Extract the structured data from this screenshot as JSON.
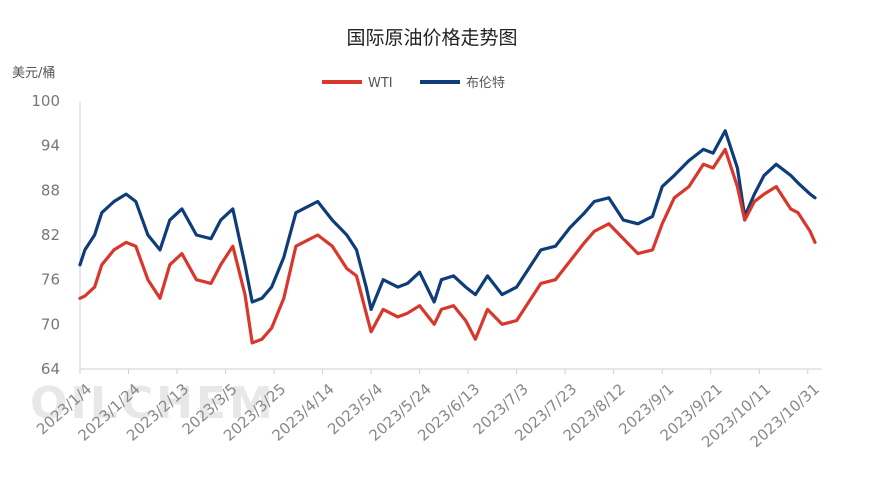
{
  "chart_data": {
    "type": "line",
    "title": "国际原油价格走势图",
    "ylabel": "美元/桶",
    "ylim": [
      64,
      100
    ],
    "yticks": [
      64,
      70,
      76,
      82,
      88,
      94,
      100
    ],
    "xlim": [
      "2023-01-04",
      "2023-11-03"
    ],
    "xticks": [
      "2023/1/4",
      "2023/1/24",
      "2023/2/13",
      "2023/3/5",
      "2023/3/25",
      "2023/4/14",
      "2023/5/4",
      "2023/5/24",
      "2023/6/13",
      "2023/7/3",
      "2023/7/23",
      "2023/8/12",
      "2023/9/1",
      "2023/9/21",
      "2023/10/11",
      "2023/10/31"
    ],
    "grid": false,
    "legend_position": "top-center",
    "watermark": "OILCHEM",
    "series": [
      {
        "name": "WTI",
        "color": "#d9372b",
        "x": [
          "2023-01-04",
          "2023-01-06",
          "2023-01-10",
          "2023-01-13",
          "2023-01-18",
          "2023-01-23",
          "2023-01-27",
          "2023-02-01",
          "2023-02-06",
          "2023-02-10",
          "2023-02-15",
          "2023-02-21",
          "2023-02-27",
          "2023-03-03",
          "2023-03-08",
          "2023-03-13",
          "2023-03-16",
          "2023-03-20",
          "2023-03-24",
          "2023-03-29",
          "2023-04-03",
          "2023-04-06",
          "2023-04-12",
          "2023-04-18",
          "2023-04-24",
          "2023-04-28",
          "2023-05-02",
          "2023-05-04",
          "2023-05-09",
          "2023-05-15",
          "2023-05-19",
          "2023-05-24",
          "2023-05-30",
          "2023-06-02",
          "2023-06-07",
          "2023-06-12",
          "2023-06-16",
          "2023-06-21",
          "2023-06-27",
          "2023-07-03",
          "2023-07-07",
          "2023-07-13",
          "2023-07-19",
          "2023-07-25",
          "2023-07-31",
          "2023-08-04",
          "2023-08-10",
          "2023-08-16",
          "2023-08-22",
          "2023-08-28",
          "2023-09-01",
          "2023-09-06",
          "2023-09-12",
          "2023-09-18",
          "2023-09-22",
          "2023-09-27",
          "2023-10-02",
          "2023-10-05",
          "2023-10-09",
          "2023-10-13",
          "2023-10-18",
          "2023-10-24",
          "2023-10-27",
          "2023-11-01",
          "2023-11-03"
        ],
        "values": [
          73.5,
          73.8,
          75,
          78,
          80,
          81,
          80.5,
          76,
          73.5,
          78,
          79.5,
          76,
          75.5,
          78,
          80.5,
          74,
          67.5,
          68,
          69.5,
          73.5,
          80.5,
          81,
          82,
          80.5,
          77.5,
          76.5,
          71.5,
          69,
          72,
          71,
          71.5,
          72.5,
          70,
          72,
          72.5,
          70.5,
          68,
          72,
          70,
          70.5,
          72.5,
          75.5,
          76,
          78.5,
          81,
          82.5,
          83.5,
          81.5,
          79.5,
          80,
          83.5,
          87,
          88.5,
          91.5,
          91,
          93.5,
          88.5,
          84,
          86.5,
          87.5,
          88.5,
          85.5,
          85,
          82.5,
          81
        ]
      },
      {
        "name": "布伦特",
        "color": "#0e3d7a",
        "x": [
          "2023-01-04",
          "2023-01-06",
          "2023-01-10",
          "2023-01-13",
          "2023-01-18",
          "2023-01-23",
          "2023-01-27",
          "2023-02-01",
          "2023-02-06",
          "2023-02-10",
          "2023-02-15",
          "2023-02-21",
          "2023-02-27",
          "2023-03-03",
          "2023-03-08",
          "2023-03-13",
          "2023-03-16",
          "2023-03-20",
          "2023-03-24",
          "2023-03-29",
          "2023-04-03",
          "2023-04-06",
          "2023-04-12",
          "2023-04-18",
          "2023-04-24",
          "2023-04-28",
          "2023-05-02",
          "2023-05-04",
          "2023-05-09",
          "2023-05-15",
          "2023-05-19",
          "2023-05-24",
          "2023-05-30",
          "2023-06-02",
          "2023-06-07",
          "2023-06-12",
          "2023-06-16",
          "2023-06-21",
          "2023-06-27",
          "2023-07-03",
          "2023-07-07",
          "2023-07-13",
          "2023-07-19",
          "2023-07-25",
          "2023-07-31",
          "2023-08-04",
          "2023-08-10",
          "2023-08-16",
          "2023-08-22",
          "2023-08-28",
          "2023-09-01",
          "2023-09-06",
          "2023-09-12",
          "2023-09-18",
          "2023-09-22",
          "2023-09-27",
          "2023-10-02",
          "2023-10-05",
          "2023-10-09",
          "2023-10-13",
          "2023-10-18",
          "2023-10-24",
          "2023-10-27",
          "2023-11-01",
          "2023-11-03"
        ],
        "values": [
          78,
          80,
          82,
          85,
          86.5,
          87.5,
          86.5,
          82,
          80,
          84,
          85.5,
          82,
          81.5,
          84,
          85.5,
          78,
          73,
          73.5,
          75,
          79,
          85,
          85.5,
          86.5,
          84,
          82,
          80,
          75,
          72,
          76,
          75,
          75.5,
          77,
          73,
          76,
          76.5,
          75,
          74,
          76.5,
          74,
          75,
          77,
          80,
          80.5,
          83,
          85,
          86.5,
          87,
          84,
          83.5,
          84.5,
          88.5,
          90,
          92,
          93.5,
          93,
          96,
          91,
          84.5,
          87.5,
          90,
          91.5,
          90,
          89,
          87.5,
          87
        ]
      }
    ]
  }
}
